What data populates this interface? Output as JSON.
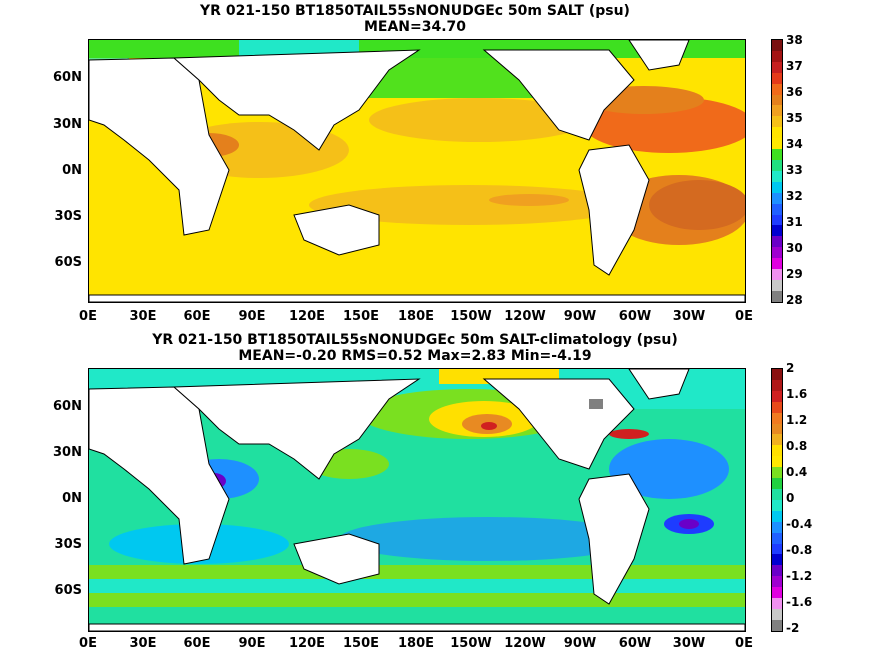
{
  "top": {
    "title": "YR 021-150 BT1850TAIL55sNONUDGEc 50m SALT (psu)",
    "subtitle": "MEAN=34.70",
    "colorbar_labels": [
      "38",
      "37",
      "36",
      "35",
      "34",
      "33",
      "32",
      "31",
      "30",
      "29",
      "28"
    ],
    "colorbar_colors": [
      "#7a1010",
      "#a31414",
      "#c62020",
      "#e43a1a",
      "#f06a1a",
      "#e4801c",
      "#f0a020",
      "#f5c018",
      "#ffe400",
      "#ffe800",
      "#3ee020",
      "#20e080",
      "#20e8c8",
      "#00c8f0",
      "#1e90ff",
      "#2060ff",
      "#1e3cff",
      "#0000d0",
      "#6a00c8",
      "#a000d0",
      "#e000e0",
      "#f090f0",
      "#c8c8c8",
      "#808080"
    ]
  },
  "bottom": {
    "title": "YR 021-150 BT1850TAIL55sNONUDGEc 50m SALT-climatology (psu)",
    "subtitle": "MEAN=-0.20   RMS=0.52   Max=2.83   Min=-4.19",
    "colorbar_labels": [
      "2",
      "1.6",
      "1.2",
      "0.8",
      "0.4",
      "0",
      "-0.4",
      "-0.8",
      "-1.2",
      "-1.6",
      "-2"
    ],
    "colorbar_colors": [
      "#8a1010",
      "#b01818",
      "#d02020",
      "#e84a1a",
      "#f07a20",
      "#e88a22",
      "#f0b020",
      "#ffe000",
      "#ffe800",
      "#7ae020",
      "#20d040",
      "#20e0a0",
      "#20e8c8",
      "#00c8f0",
      "#1e90ff",
      "#2060ff",
      "#1e3cff",
      "#0000d0",
      "#6a00c8",
      "#a000d0",
      "#e000e0",
      "#f090f0",
      "#c8c8c8",
      "#808080"
    ]
  },
  "y_ticks": [
    "60N",
    "30N",
    "0N",
    "30S",
    "60S"
  ],
  "x_ticks": [
    "0E",
    "30E",
    "60E",
    "90E",
    "120E",
    "150E",
    "180E",
    "150W",
    "120W",
    "90W",
    "60W",
    "30W",
    "0E"
  ]
}
